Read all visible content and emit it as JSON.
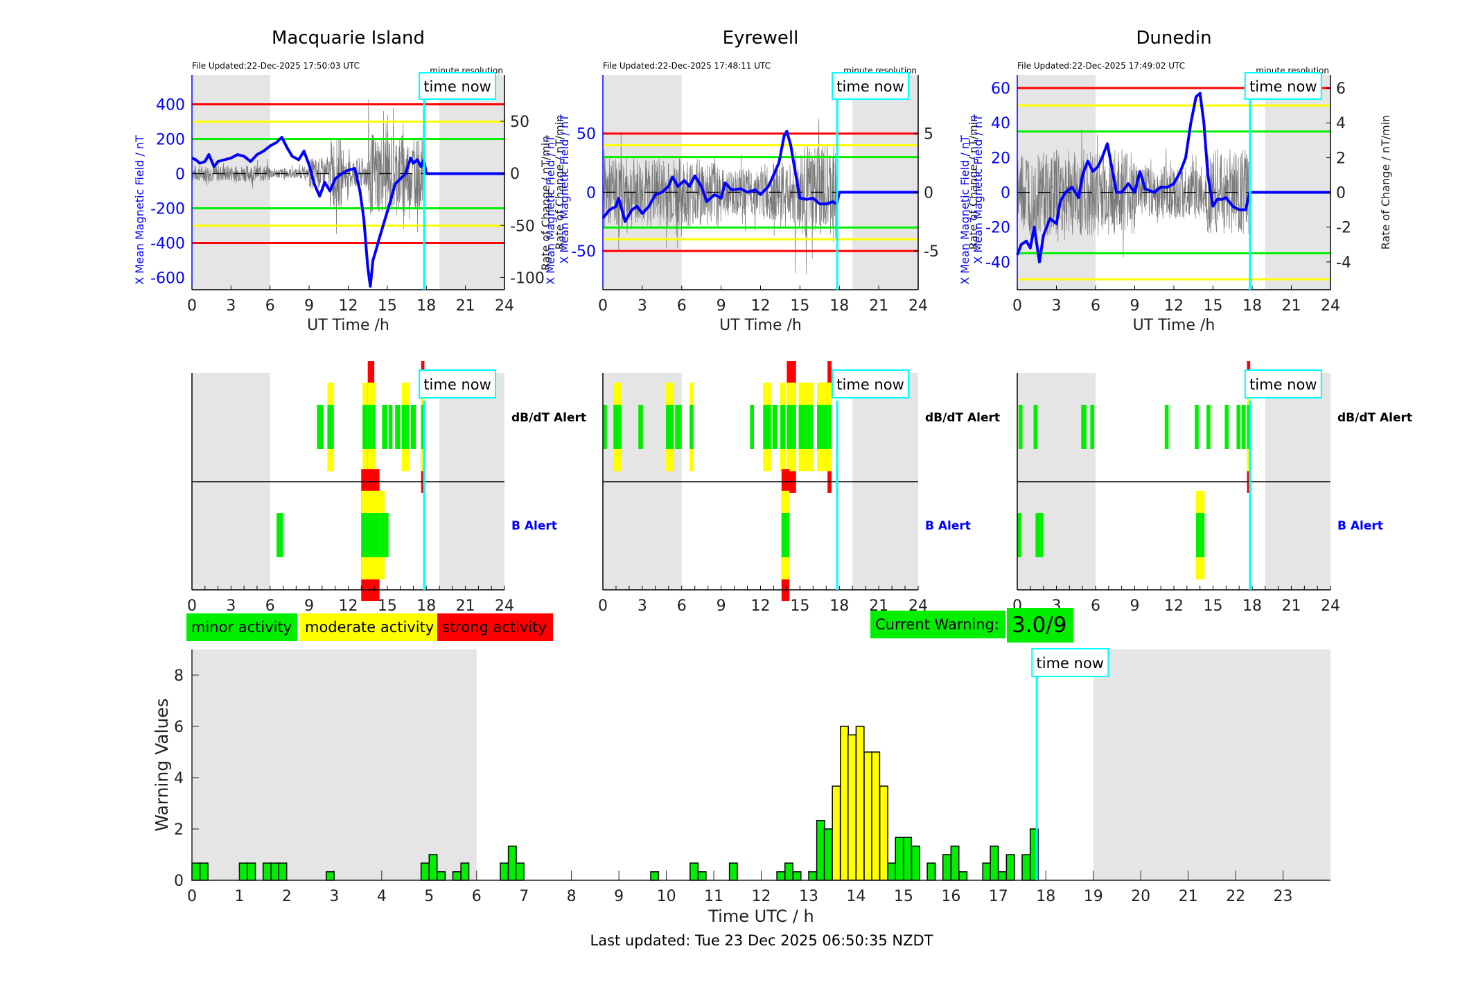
{
  "chart_data": [
    {
      "type": "line",
      "id": "macquarie",
      "title": "Macquarie Island",
      "file_updated": "File Updated:22-Dec-2025 17:50:03 UTC",
      "resolution_label": "minute resolution",
      "time_now_label": "time now",
      "time_now_h": 17.83,
      "xlabel": "UT Time /h",
      "ylabel_left": "X Mean Magnetic Field / nT",
      "ylabel_right": "Rate of Change / nT/min",
      "ylabel_right_overlap": "X Mean Magnetic Field / nT",
      "xlim": [
        0,
        24
      ],
      "xticks": [
        0,
        3,
        6,
        9,
        12,
        15,
        18,
        21,
        24
      ],
      "ylim_left": [
        -670,
        570
      ],
      "yticks_left": [
        400,
        200,
        0,
        -200,
        -400,
        -600
      ],
      "ylim_right": [
        -111.7,
        94.6
      ],
      "yticks_right": [
        50,
        0,
        -50,
        -100
      ],
      "night_shading_h": [
        [
          0,
          6
        ],
        [
          19,
          24
        ]
      ],
      "thresholds": {
        "red": 400,
        "yellow": 300,
        "green": 200
      },
      "series": [
        {
          "name": "X Mean Magnetic Field",
          "color": "#0000ff",
          "x": [
            0,
            0.3,
            0.6,
            1.0,
            1.3,
            1.7,
            2.0,
            2.5,
            3.0,
            3.5,
            4.0,
            4.5,
            5.0,
            5.5,
            6.0,
            6.5,
            6.9,
            7.3,
            7.7,
            8.2,
            8.6,
            9.0,
            9.4,
            9.8,
            10.2,
            10.6,
            11.0,
            11.5,
            12.0,
            12.5,
            12.9,
            13.2,
            13.5,
            13.7,
            13.9,
            14.1,
            14.4,
            14.8,
            15.2,
            15.6,
            16.0,
            16.4,
            16.8,
            17.0,
            17.3,
            17.6,
            17.8,
            18.0,
            24
          ],
          "y": [
            90,
            80,
            60,
            70,
            110,
            40,
            70,
            80,
            90,
            110,
            100,
            70,
            110,
            130,
            160,
            180,
            210,
            150,
            100,
            80,
            130,
            50,
            -60,
            -130,
            -50,
            -100,
            -30,
            0,
            20,
            30,
            -100,
            -260,
            -540,
            -650,
            -500,
            -450,
            -370,
            -270,
            -170,
            -60,
            -30,
            0,
            90,
            60,
            80,
            40,
            80,
            0,
            0
          ]
        },
        {
          "name": "Rate of Change",
          "color": "#555555",
          "noise": true,
          "amp_profile": [
            [
              0,
              8
            ],
            [
              6,
              5
            ],
            [
              9,
              15
            ],
            [
              10.6,
              35
            ],
            [
              11.5,
              15
            ],
            [
              13.5,
              40
            ],
            [
              16.5,
              35
            ],
            [
              17.8,
              30
            ]
          ]
        }
      ]
    },
    {
      "type": "line",
      "id": "eyrewell",
      "title": "Eyrewell",
      "file_updated": "File Updated:22-Dec-2025 17:48:11 UTC",
      "resolution_label": "minute resolution",
      "time_now_label": "time now",
      "time_now_h": 17.83,
      "xlabel": "UT Time /h",
      "ylabel_left": "X Mean Magnetic Field / nT",
      "ylabel_left_overlap": "Rate of Change / nT/min",
      "ylabel_right": "Rate of Change / nT/min",
      "ylabel_right_overlap": "X Mean Magnetic Field / nT",
      "xlim": [
        0,
        24
      ],
      "xticks": [
        0,
        3,
        6,
        9,
        12,
        15,
        18,
        21,
        24
      ],
      "ylim_left": [
        -83,
        100
      ],
      "yticks_left": [
        50,
        0,
        -50
      ],
      "ylim_right": [
        -8.3,
        10
      ],
      "yticks_right": [
        5,
        0,
        -5
      ],
      "night_shading_h": [
        [
          0,
          6
        ],
        [
          19,
          24
        ]
      ],
      "thresholds": {
        "red": 50,
        "yellow": 40,
        "green": 30
      },
      "series": [
        {
          "name": "X Mean Magnetic Field",
          "color": "#0000ff",
          "x": [
            0,
            0.5,
            1.0,
            1.2,
            1.7,
            2.2,
            2.6,
            3.0,
            3.5,
            4.0,
            4.5,
            5.0,
            5.3,
            5.7,
            6.2,
            6.6,
            7.0,
            7.5,
            7.9,
            8.5,
            9.0,
            9.3,
            9.8,
            10.5,
            11.0,
            11.6,
            12.0,
            12.6,
            13.0,
            13.4,
            13.8,
            14.0,
            14.3,
            14.6,
            15.0,
            15.5,
            16.0,
            16.5,
            17.0,
            17.5,
            17.8,
            18.0,
            24
          ],
          "y": [
            -22,
            -15,
            -12,
            -5,
            -25,
            -15,
            -12,
            -18,
            -12,
            -2,
            0,
            5,
            13,
            5,
            10,
            5,
            14,
            5,
            -8,
            -2,
            -5,
            8,
            2,
            3,
            0,
            2,
            -2,
            5,
            15,
            25,
            48,
            52,
            40,
            20,
            -5,
            -6,
            -5,
            -10,
            -10,
            -8,
            -10,
            0,
            0
          ]
        },
        {
          "name": "Rate of Change",
          "color": "#555555",
          "noise": true,
          "amp_profile": [
            [
              0,
              3
            ],
            [
              6,
              3
            ],
            [
              9,
              2
            ],
            [
              12,
              2.5
            ],
            [
              14.5,
              4
            ],
            [
              17.8,
              4
            ]
          ]
        }
      ]
    },
    {
      "type": "line",
      "id": "dunedin",
      "title": "Dunedin",
      "file_updated": "File Updated:22-Dec-2025 17:49:02 UTC",
      "resolution_label": "minute resolution",
      "time_now_label": "time now",
      "time_now_h": 17.83,
      "xlabel": "UT Time /h",
      "ylabel_left": "X Mean Magnetic Field / nT",
      "ylabel_right": "Rate of Change / nT/min",
      "xlim": [
        0,
        24
      ],
      "xticks": [
        0,
        3,
        6,
        9,
        12,
        15,
        18,
        21,
        24
      ],
      "ylim_left": [
        -56,
        67.6
      ],
      "yticks_left": [
        60,
        40,
        20,
        0,
        -20,
        -40
      ],
      "ylim_right": [
        -5.6,
        6.76
      ],
      "yticks_right": [
        6,
        4,
        2,
        0,
        -2,
        -4
      ],
      "night_shading_h": [
        [
          0,
          6
        ],
        [
          19,
          24
        ]
      ],
      "thresholds": {
        "red": 60,
        "yellow": 50,
        "green": 35
      },
      "series": [
        {
          "name": "X Mean Magnetic Field",
          "color": "#0000ff",
          "x": [
            0,
            0.3,
            0.7,
            1.0,
            1.3,
            1.7,
            2.0,
            2.5,
            3.0,
            3.3,
            3.7,
            4.2,
            4.7,
            5.0,
            5.4,
            5.8,
            6.2,
            6.5,
            6.9,
            7.3,
            7.6,
            8.0,
            8.5,
            9.0,
            9.4,
            9.8,
            10.5,
            11.0,
            11.5,
            12.0,
            12.5,
            12.9,
            13.3,
            13.7,
            14.0,
            14.3,
            14.6,
            15.0,
            15.3,
            15.7,
            16.0,
            16.5,
            17.0,
            17.5,
            17.8,
            18.0,
            24
          ],
          "y": [
            -36,
            -30,
            -28,
            -32,
            -20,
            -40,
            -25,
            -15,
            -18,
            -5,
            0,
            3,
            -3,
            10,
            18,
            12,
            15,
            20,
            28,
            12,
            0,
            0,
            5,
            0,
            12,
            2,
            0,
            3,
            3,
            5,
            12,
            20,
            40,
            55,
            57,
            40,
            10,
            -8,
            -4,
            -4,
            -3,
            -8,
            -10,
            -10,
            0,
            0,
            0
          ]
        },
        {
          "name": "Rate of Change",
          "color": "#555555",
          "noise": true,
          "amp_profile": [
            [
              0,
              2.5
            ],
            [
              6,
              2.5
            ],
            [
              9,
              1.5
            ],
            [
              12,
              1.5
            ],
            [
              14.5,
              2.5
            ],
            [
              17.8,
              2.5
            ]
          ]
        }
      ]
    }
  ],
  "alerts": {
    "row_labels": {
      "dbdt": "dB/dT Alert",
      "b": "B Alert"
    },
    "time_now_label": "time now",
    "xticks": [
      0,
      3,
      6,
      9,
      12,
      15,
      18,
      21,
      24
    ],
    "stations": [
      {
        "id": "macquarie",
        "dbdt": [
          [
            9.6,
            0.5,
            1
          ],
          [
            10.4,
            0.5,
            2
          ],
          [
            13.1,
            0.4,
            2
          ],
          [
            13.5,
            0.5,
            3
          ],
          [
            13.8,
            0.3,
            2
          ],
          [
            14.6,
            0.4,
            1
          ],
          [
            15.1,
            0.3,
            1
          ],
          [
            15.6,
            0.4,
            1
          ],
          [
            16.1,
            0.6,
            2
          ],
          [
            16.8,
            0.4,
            1
          ],
          [
            17.6,
            0.25,
            3
          ]
        ],
        "b": [
          [
            6.5,
            0.5,
            1
          ],
          [
            13.0,
            1.4,
            3
          ],
          [
            14.4,
            0.4,
            2
          ],
          [
            14.8,
            0.3,
            1
          ]
        ]
      },
      {
        "id": "eyrewell",
        "dbdt": [
          [
            0.0,
            0.3,
            1
          ],
          [
            0.8,
            0.6,
            2
          ],
          [
            2.7,
            0.35,
            1
          ],
          [
            4.8,
            0.6,
            2
          ],
          [
            5.5,
            0.5,
            1
          ],
          [
            6.6,
            0.3,
            2
          ],
          [
            11.2,
            0.3,
            1
          ],
          [
            12.2,
            0.6,
            2
          ],
          [
            12.9,
            0.4,
            1
          ],
          [
            13.5,
            0.4,
            2
          ],
          [
            14.0,
            0.7,
            3
          ],
          [
            14.9,
            0.6,
            2
          ],
          [
            15.5,
            0.5,
            2
          ],
          [
            16.3,
            0.8,
            2
          ],
          [
            17.1,
            0.3,
            3
          ]
        ],
        "b": [
          [
            13.6,
            0.6,
            3
          ]
        ]
      },
      {
        "id": "dunedin",
        "dbdt": [
          [
            0.1,
            0.3,
            1
          ],
          [
            1.25,
            0.3,
            1
          ],
          [
            4.9,
            0.4,
            1
          ],
          [
            5.6,
            0.3,
            1
          ],
          [
            11.3,
            0.3,
            1
          ],
          [
            13.6,
            0.3,
            1
          ],
          [
            14.5,
            0.3,
            1
          ],
          [
            15.9,
            0.3,
            1
          ],
          [
            16.8,
            0.3,
            1
          ],
          [
            17.2,
            0.3,
            1
          ],
          [
            17.6,
            0.25,
            3
          ]
        ],
        "b": [
          [
            0.0,
            0.3,
            1
          ],
          [
            1.4,
            0.6,
            1
          ],
          [
            13.7,
            0.65,
            2
          ]
        ]
      }
    ]
  },
  "legend": {
    "minor": {
      "label": "minor activity",
      "color": "#00ee00"
    },
    "moderate": {
      "label": "moderate activity",
      "color": "#ffff00"
    },
    "strong": {
      "label": "strong activity",
      "color": "#ff0000"
    }
  },
  "current_warning": {
    "label": "Current Warning:",
    "value": "3.0/9",
    "color": "#00ee00"
  },
  "warning_chart": {
    "type": "bar",
    "ylabel": "Warning Values",
    "xlabel": "Time UTC / h",
    "xlim": [
      0,
      24
    ],
    "ylim": [
      0,
      9
    ],
    "yticks": [
      0,
      2,
      4,
      6,
      8
    ],
    "xticks": [
      0,
      1,
      2,
      3,
      4,
      5,
      6,
      7,
      8,
      9,
      10,
      11,
      12,
      13,
      14,
      15,
      16,
      17,
      18,
      19,
      20,
      21,
      22,
      23
    ],
    "bin_hours": 0.1667,
    "night_shading_h": [
      [
        0,
        6
      ],
      [
        19,
        24
      ]
    ],
    "time_now_h": 17.81,
    "time_now_label": "time now",
    "moderate_threshold": 3,
    "x": [
      0.0,
      0.17,
      1.0,
      1.17,
      1.5,
      1.67,
      1.83,
      2.83,
      4.83,
      5.0,
      5.17,
      5.5,
      5.67,
      6.5,
      6.67,
      6.83,
      9.67,
      10.5,
      10.67,
      11.33,
      12.33,
      12.5,
      12.67,
      13.0,
      13.17,
      13.33,
      13.5,
      13.67,
      13.83,
      14.0,
      14.17,
      14.33,
      14.5,
      14.67,
      14.83,
      15.0,
      15.17,
      15.5,
      15.83,
      16.0,
      16.17,
      16.67,
      16.83,
      17.0,
      17.17,
      17.5,
      17.67
    ],
    "values": [
      0.67,
      0.67,
      0.67,
      0.67,
      0.67,
      0.67,
      0.67,
      0.33,
      0.67,
      1.0,
      0.33,
      0.33,
      0.67,
      0.67,
      1.33,
      0.67,
      0.33,
      0.67,
      0.33,
      0.67,
      0.33,
      0.67,
      0.33,
      0.33,
      2.33,
      2.0,
      3.67,
      6.0,
      5.67,
      6.0,
      5.0,
      5.0,
      3.67,
      0.67,
      1.67,
      1.67,
      1.33,
      0.67,
      1.0,
      1.33,
      0.33,
      0.67,
      1.33,
      0.33,
      1.0,
      1.0,
      2.0
    ]
  },
  "footer": {
    "last_updated": "Last updated: Tue 23 Dec 2025 06:50:35 NZDT"
  },
  "colors": {
    "field": "#0000ff",
    "time_now": "#00ffff",
    "night": "#e5e5e5",
    "red": "#ff0000",
    "yellow": "#ffff00",
    "green": "#00ee00"
  }
}
